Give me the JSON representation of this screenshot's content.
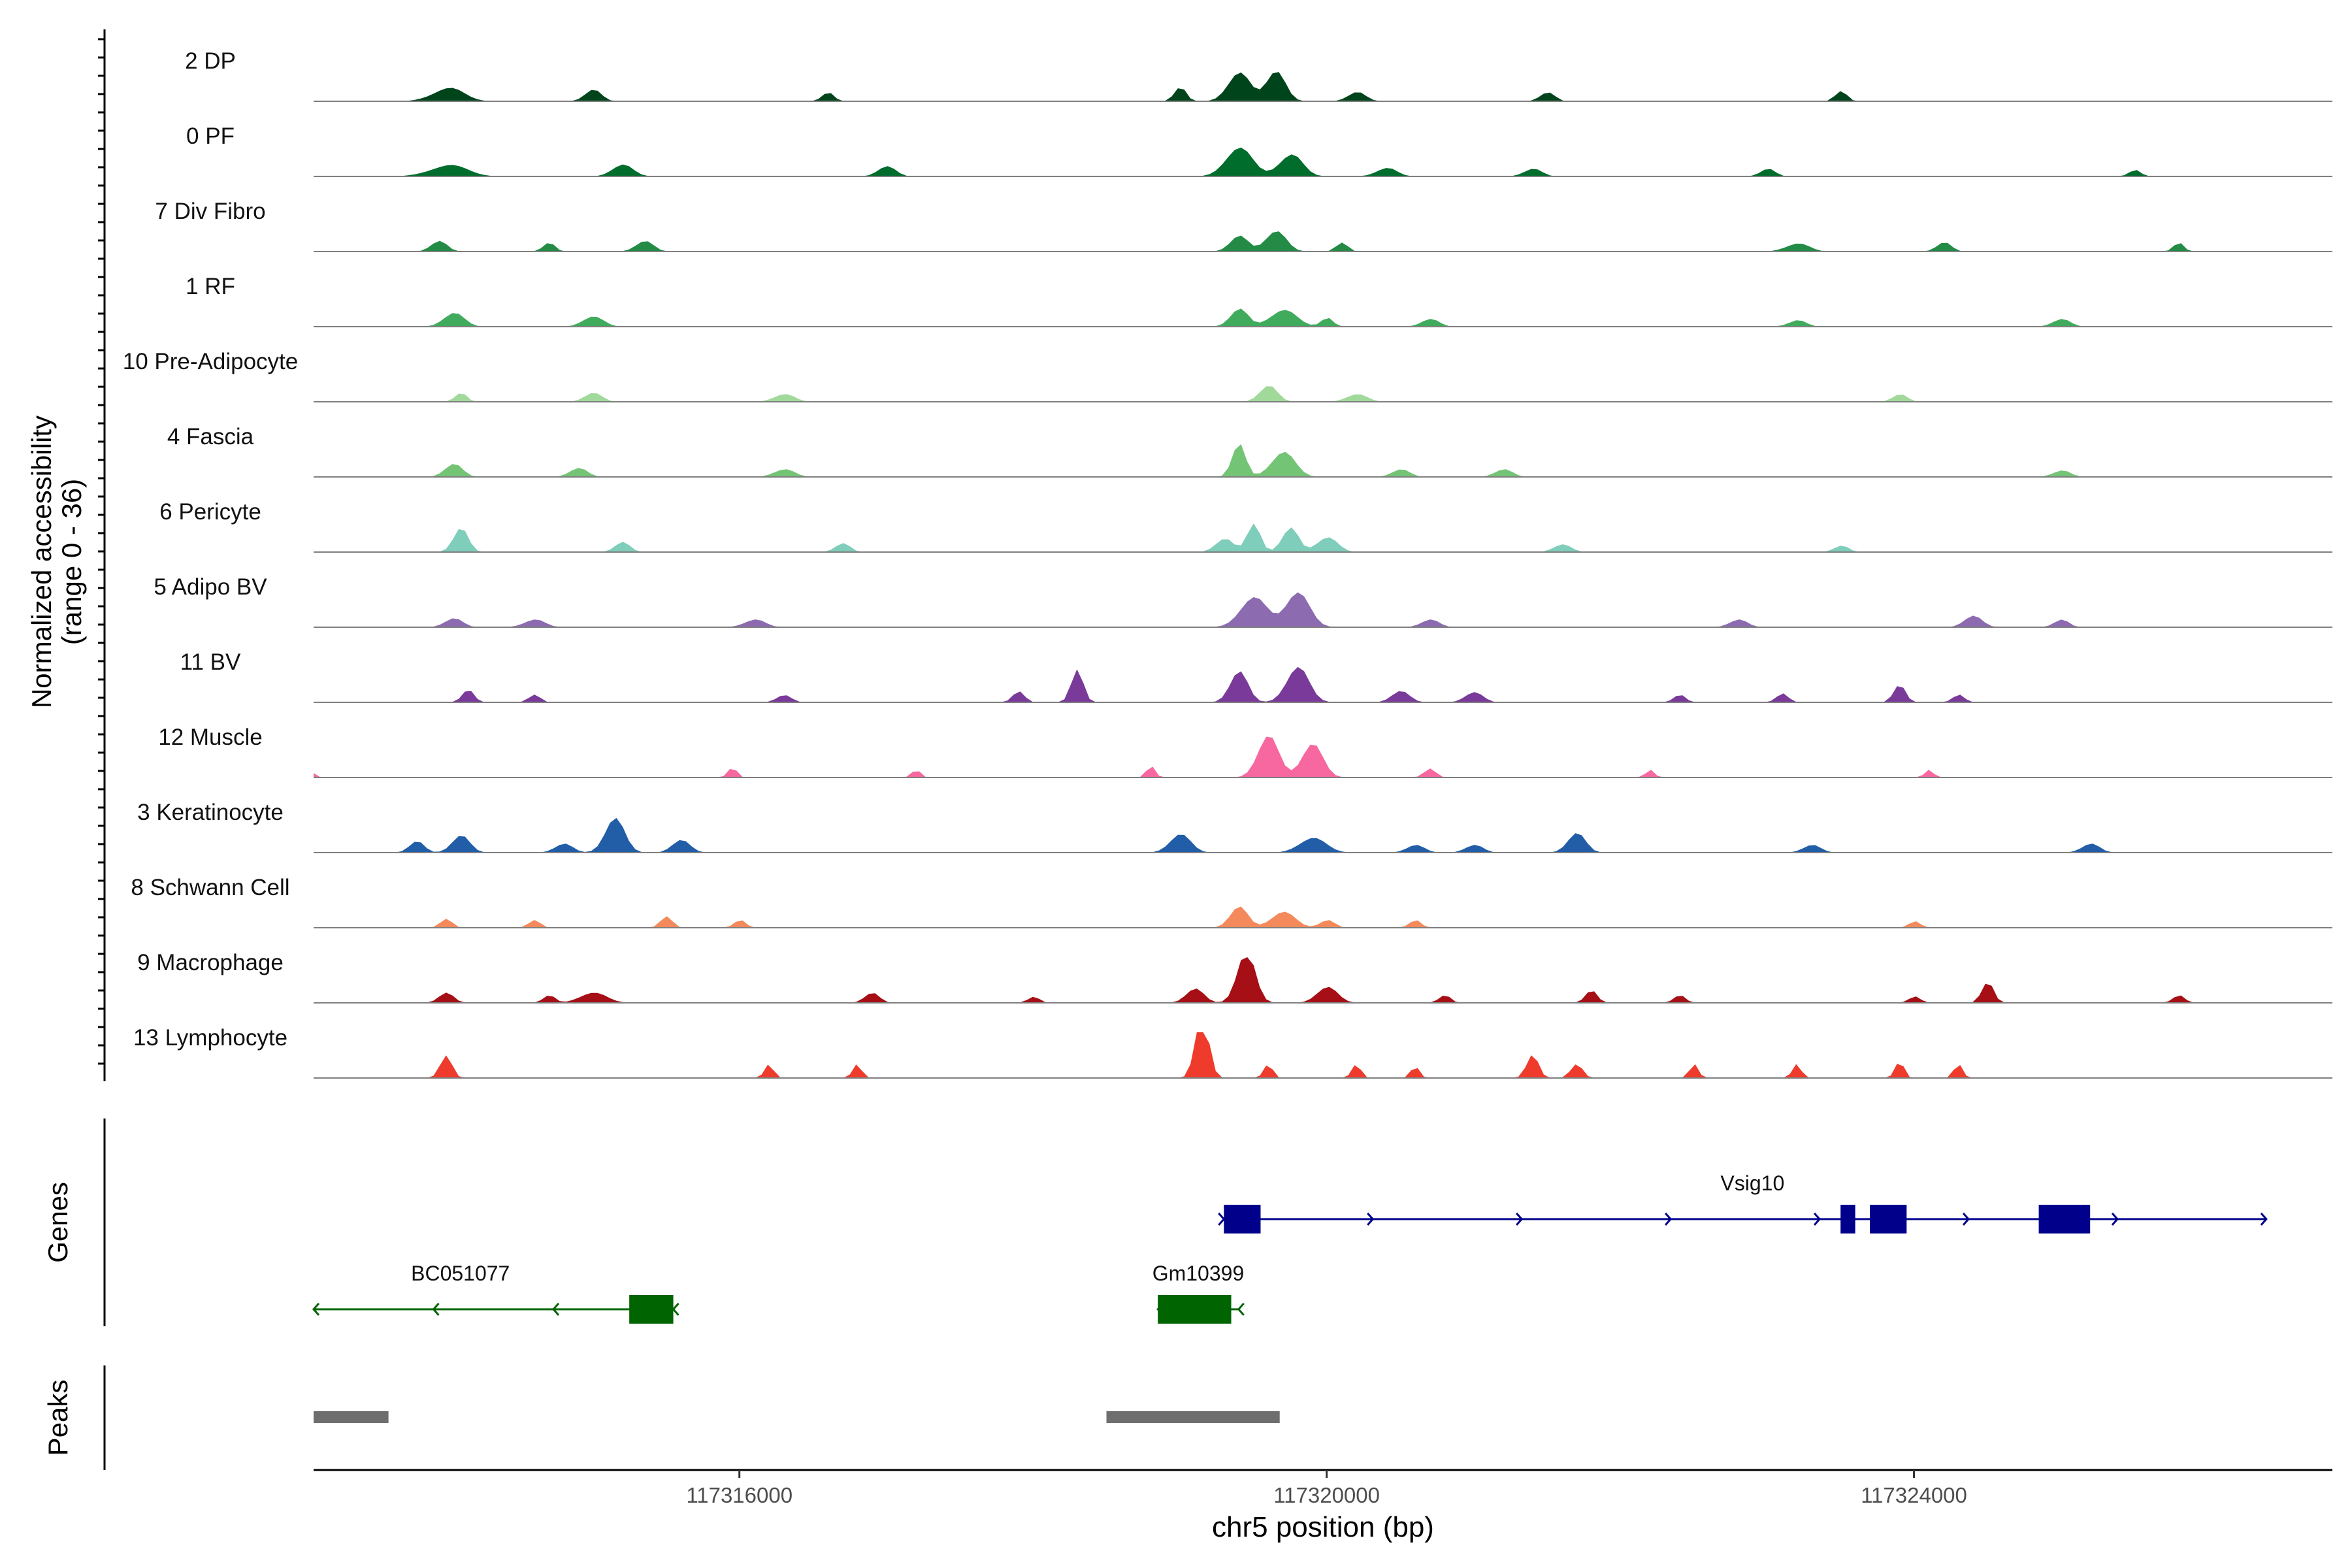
{
  "chart_data": {
    "type": "area",
    "title": "",
    "xlabel": "chr5 position (bp)",
    "ylabel_line1": "Normalized accessibility",
    "ylabel_line2": "(range 0 - 36)",
    "y_range": [
      0,
      36
    ],
    "x_range": [
      117313100,
      117326850
    ],
    "x_ticks": [
      {
        "value": 117316000,
        "label": "117316000"
      },
      {
        "value": 117320000,
        "label": "117320000"
      },
      {
        "value": 117324000,
        "label": "117324000"
      }
    ],
    "panels": {
      "genes": "Genes",
      "peaks": "Peaks"
    },
    "tracks": [
      {
        "name": "2 DP",
        "color": "#00441b",
        "peaks": [
          [
            117314000,
            110,
            7,
            12
          ],
          [
            117315000,
            55,
            8,
            5
          ],
          [
            117316600,
            40,
            6,
            4
          ],
          [
            117319000,
            40,
            10,
            5
          ],
          [
            117319400,
            75,
            20,
            10
          ],
          [
            117319650,
            65,
            21,
            10
          ],
          [
            117320200,
            60,
            6,
            5
          ],
          [
            117321500,
            50,
            6,
            4
          ],
          [
            117323500,
            40,
            7,
            4
          ]
        ]
      },
      {
        "name": "0 PF",
        "color": "#006d2c",
        "peaks": [
          [
            117314000,
            130,
            6,
            10
          ],
          [
            117315200,
            70,
            8,
            5
          ],
          [
            117317000,
            60,
            7,
            4
          ],
          [
            117319400,
            90,
            20,
            10
          ],
          [
            117319750,
            80,
            14,
            12
          ],
          [
            117320400,
            70,
            5,
            6
          ],
          [
            117321400,
            60,
            5,
            4
          ],
          [
            117323000,
            50,
            5,
            4
          ],
          [
            117325500,
            40,
            4,
            4
          ]
        ]
      },
      {
        "name": "7 Div Fibro",
        "color": "#238b45",
        "peaks": [
          [
            117313950,
            55,
            7,
            5
          ],
          [
            117314700,
            40,
            6,
            4
          ],
          [
            117315350,
            60,
            7,
            5
          ],
          [
            117319400,
            60,
            11,
            6
          ],
          [
            117319650,
            70,
            14,
            8
          ],
          [
            117320100,
            40,
            6,
            4
          ],
          [
            117323200,
            80,
            5,
            5
          ],
          [
            117324200,
            50,
            6,
            5
          ],
          [
            117325800,
            35,
            6,
            4
          ]
        ]
      },
      {
        "name": "1 RF",
        "color": "#41ab5d",
        "peaks": [
          [
            117314050,
            70,
            9,
            7
          ],
          [
            117315000,
            70,
            7,
            4
          ],
          [
            117319400,
            60,
            12,
            8
          ],
          [
            117319700,
            90,
            11,
            8
          ],
          [
            117320000,
            40,
            6,
            4
          ],
          [
            117320700,
            60,
            5,
            4
          ],
          [
            117323200,
            60,
            4,
            4
          ],
          [
            117325000,
            60,
            5,
            4
          ]
        ]
      },
      {
        "name": "10 Pre-Adipocyte",
        "color": "#a1d99b",
        "peaks": [
          [
            117314100,
            40,
            6,
            4
          ],
          [
            117315000,
            60,
            6,
            4
          ],
          [
            117316300,
            70,
            5,
            4
          ],
          [
            117319600,
            60,
            11,
            7
          ],
          [
            117320200,
            70,
            5,
            4
          ],
          [
            117323900,
            50,
            5,
            4
          ]
        ]
      },
      {
        "name": "4 Fascia",
        "color": "#74c476",
        "peaks": [
          [
            117314050,
            60,
            9,
            5
          ],
          [
            117314900,
            60,
            6,
            4
          ],
          [
            117316300,
            70,
            5,
            4
          ],
          [
            117319400,
            45,
            24,
            10
          ],
          [
            117319700,
            80,
            17,
            10
          ],
          [
            117320500,
            60,
            5,
            4
          ],
          [
            117321200,
            60,
            5,
            4
          ],
          [
            117325000,
            60,
            4,
            4
          ]
        ]
      },
      {
        "name": "6 Pericyte",
        "color": "#7fcdbb",
        "peaks": [
          [
            117314100,
            50,
            17,
            8
          ],
          [
            117315200,
            50,
            7,
            4
          ],
          [
            117316700,
            50,
            6,
            4
          ],
          [
            117319300,
            60,
            9,
            6
          ],
          [
            117319500,
            45,
            20,
            9
          ],
          [
            117319750,
            55,
            17,
            9
          ],
          [
            117320000,
            70,
            10,
            6
          ],
          [
            117321600,
            60,
            5,
            4
          ],
          [
            117323500,
            50,
            4,
            4
          ]
        ]
      },
      {
        "name": "5 Adipo BV",
        "color": "#8c6bb1",
        "peaks": [
          [
            117314050,
            60,
            6,
            4
          ],
          [
            117314600,
            70,
            5,
            4
          ],
          [
            117316100,
            70,
            5,
            4
          ],
          [
            117319500,
            90,
            21,
            10
          ],
          [
            117319800,
            80,
            25,
            9
          ],
          [
            117320700,
            60,
            5,
            4
          ],
          [
            117322800,
            60,
            5,
            4
          ],
          [
            117324400,
            60,
            8,
            4
          ],
          [
            117325000,
            50,
            5,
            4
          ]
        ]
      },
      {
        "name": "11 BV",
        "color": "#7a3a9a",
        "peaks": [
          [
            117314150,
            40,
            9,
            4
          ],
          [
            117314600,
            40,
            5,
            4
          ],
          [
            117316300,
            50,
            5,
            3
          ],
          [
            117317900,
            40,
            8,
            3
          ],
          [
            117318300,
            40,
            25,
            4
          ],
          [
            117319400,
            60,
            22,
            10
          ],
          [
            117319800,
            75,
            25,
            11
          ],
          [
            117320500,
            60,
            8,
            4
          ],
          [
            117321000,
            60,
            7,
            4
          ],
          [
            117322400,
            40,
            5,
            4
          ],
          [
            117323100,
            40,
            6,
            4
          ],
          [
            117323900,
            40,
            13,
            4
          ],
          [
            117324300,
            40,
            5,
            4
          ]
        ]
      },
      {
        "name": "12 Muscle",
        "color": "#f768a1",
        "peaks": [
          [
            117313100,
            20,
            3,
            2
          ],
          [
            117315950,
            30,
            7,
            4
          ],
          [
            117317200,
            30,
            5,
            4
          ],
          [
            117318800,
            30,
            8,
            4
          ],
          [
            117319600,
            70,
            30,
            12
          ],
          [
            117319900,
            70,
            24,
            10
          ],
          [
            117320700,
            40,
            6,
            4
          ],
          [
            117322200,
            30,
            5,
            4
          ],
          [
            117324100,
            30,
            5,
            4
          ]
        ]
      },
      {
        "name": "3 Keratinocyte",
        "color": "#225ea8",
        "peaks": [
          [
            117313800,
            50,
            8,
            4
          ],
          [
            117314100,
            60,
            12,
            6
          ],
          [
            117314800,
            60,
            6,
            4
          ],
          [
            117315150,
            65,
            25,
            9
          ],
          [
            117315600,
            60,
            9,
            4
          ],
          [
            117319000,
            70,
            13,
            6
          ],
          [
            117319900,
            90,
            10,
            6
          ],
          [
            117320600,
            60,
            5,
            4
          ],
          [
            117321000,
            60,
            5,
            4
          ],
          [
            117321700,
            60,
            14,
            6
          ],
          [
            117323300,
            60,
            5,
            4
          ],
          [
            117325200,
            60,
            6,
            4
          ]
        ]
      },
      {
        "name": "8 Schwann Cell",
        "color": "#f4895b",
        "peaks": [
          [
            117314000,
            40,
            6,
            4
          ],
          [
            117314600,
            40,
            5,
            4
          ],
          [
            117315500,
            40,
            8,
            4
          ],
          [
            117316000,
            40,
            5,
            4
          ],
          [
            117319400,
            60,
            15,
            7
          ],
          [
            117319700,
            80,
            11,
            6
          ],
          [
            117320000,
            50,
            5,
            4
          ],
          [
            117320600,
            40,
            5,
            4
          ],
          [
            117324000,
            40,
            4,
            4
          ]
        ]
      },
      {
        "name": "9 Macrophage",
        "color": "#a50f15",
        "peaks": [
          [
            117314000,
            50,
            7,
            4
          ],
          [
            117314700,
            40,
            5,
            4
          ],
          [
            117315000,
            90,
            7,
            4
          ],
          [
            117316900,
            50,
            7,
            4
          ],
          [
            117318000,
            40,
            4,
            3
          ],
          [
            117319100,
            60,
            10,
            5
          ],
          [
            117319450,
            60,
            38,
            12
          ],
          [
            117320000,
            70,
            11,
            6
          ],
          [
            117320800,
            40,
            5,
            4
          ],
          [
            117321800,
            40,
            9,
            4
          ],
          [
            117322400,
            40,
            5,
            4
          ],
          [
            117324000,
            40,
            4,
            4
          ],
          [
            117324500,
            40,
            15,
            6
          ],
          [
            117325800,
            40,
            5,
            4
          ]
        ]
      },
      {
        "name": "13 Lymphocyte",
        "color": "#ef3b2c",
        "peaks": [
          [
            117314000,
            40,
            16,
            7
          ],
          [
            117316200,
            30,
            10,
            4
          ],
          [
            117316800,
            30,
            10,
            4
          ],
          [
            117319150,
            45,
            48,
            9
          ],
          [
            117319600,
            30,
            10,
            4
          ],
          [
            117320200,
            30,
            10,
            4
          ],
          [
            117320600,
            30,
            8,
            4
          ],
          [
            117321400,
            40,
            17,
            6
          ],
          [
            117321700,
            40,
            10,
            4
          ],
          [
            117322500,
            30,
            10,
            4
          ],
          [
            117323200,
            30,
            10,
            4
          ],
          [
            117323900,
            30,
            12,
            5
          ],
          [
            117324300,
            30,
            10,
            4
          ]
        ]
      }
    ],
    "genes": [
      {
        "name": "Vsig10",
        "color": "#00008b",
        "start": 117319300,
        "end": 117326400,
        "strand": "+",
        "row": 0,
        "exons": [
          [
            117319300,
            117319550
          ],
          [
            117323500,
            117323600
          ],
          [
            117323700,
            117323950
          ],
          [
            117324850,
            117325200
          ]
        ]
      },
      {
        "name": "BC051077",
        "color": "#006400",
        "start": 117313100,
        "end": 117315550,
        "strand": "-",
        "row": 1,
        "exons": [
          [
            117315250,
            117315550
          ]
        ]
      },
      {
        "name": "Gm10399",
        "color": "#006400",
        "start": 117318850,
        "end": 117319400,
        "strand": "-",
        "row": 1,
        "exons": [
          [
            117318850,
            117319350
          ]
        ]
      }
    ],
    "peak_regions": [
      {
        "start": 117313100,
        "end": 117313610,
        "color": "#6e6e6e"
      },
      {
        "start": 117318500,
        "end": 117319680,
        "color": "#6e6e6e"
      }
    ]
  }
}
